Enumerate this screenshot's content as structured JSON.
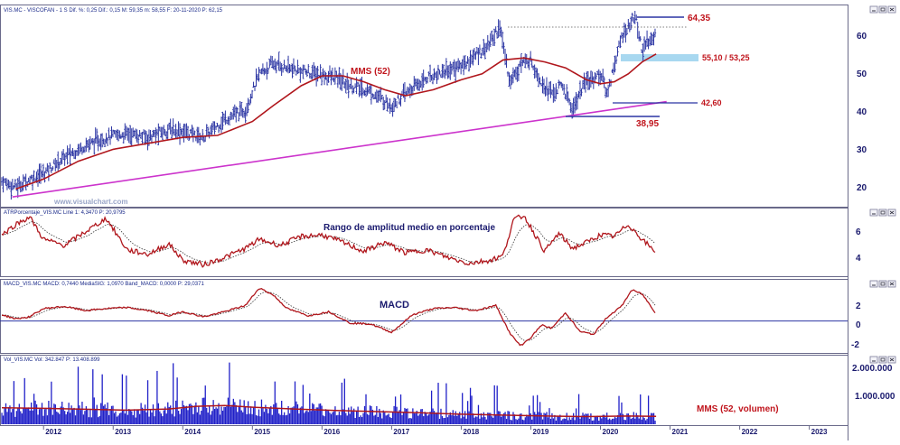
{
  "colors": {
    "price_bars": "#2b35a3",
    "ma_red": "#b0161c",
    "trendline": "#cc33cc",
    "indicator_main": "#b0161c",
    "indicator_signal": "#333333",
    "zero_line": "#2b35a3",
    "volume_bars": "#2020c8",
    "support_band": "#a8d8f0",
    "axis_text": "#1a1a6e",
    "header_text": "#1a2a8a",
    "watermark": "#9aa6c8"
  },
  "panes": {
    "price": {
      "header": "VIS.MC - VISCOFAN - 1 S  Dif. %: 0,25  Dif.: 0,15  M: 59,35  m: 58,55  F: 20-11-2020  P: 62,15",
      "ma_label": "MMS (52)",
      "watermark": "www.visualchart.com",
      "y_ticks": [
        "60",
        "50",
        "40",
        "30",
        "20"
      ],
      "annotations": {
        "high": "64,35",
        "band": "55,10 / 53,25",
        "mid": "42,60",
        "low": "38,95"
      }
    },
    "atr": {
      "header": "ATRPorcentaje_VIS.MC  Line 1: 4,3470  P: 20,9795",
      "title": "Rango de amplitud medio en porcentaje",
      "y_ticks": [
        "6",
        "4"
      ]
    },
    "macd": {
      "header": "MACD_VIS.MC  MACD: 0,7440  MediaSIG: 1,0970  Band_MACD: 0,0000  P: 29,0371",
      "title": "MACD",
      "y_ticks": [
        "2",
        "0",
        "-2"
      ]
    },
    "volume": {
      "header": "Vol_VIS.MC  Vol: 342.847  P: 13.408.899",
      "ma_label": "MMS (52, volumen)",
      "y_ticks": [
        "2.000.000",
        "1.000.000"
      ]
    }
  },
  "x_axis": {
    "years": [
      "2012",
      "2013",
      "2014",
      "2015",
      "2016",
      "2017",
      "2018",
      "2019",
      "2020",
      "2021",
      "2022",
      "2023"
    ]
  },
  "chart_data": [
    {
      "type": "line",
      "title": "VIS.MC - VISCOFAN - 1 S",
      "x_unit": "year",
      "ylim": [
        16,
        66
      ],
      "series": [
        {
          "name": "price",
          "x": [
            2011.4,
            2011.6,
            2011.8,
            2012.0,
            2012.3,
            2012.6,
            2012.9,
            2013.2,
            2013.5,
            2013.8,
            2014.0,
            2014.3,
            2014.6,
            2014.9,
            2015.1,
            2015.3,
            2015.6,
            2015.9,
            2016.2,
            2016.4,
            2016.7,
            2017.0,
            2017.2,
            2017.5,
            2017.8,
            2018.0,
            2018.2,
            2018.4,
            2018.55,
            2018.7,
            2018.85,
            2019.0,
            2019.15,
            2019.3,
            2019.45,
            2019.6,
            2019.75,
            2019.9,
            2020.0,
            2020.1,
            2020.2,
            2020.3,
            2020.4,
            2020.5,
            2020.6,
            2020.7,
            2020.8
          ],
          "values": [
            22,
            20.5,
            22.5,
            24,
            28,
            31,
            33,
            34,
            33,
            35,
            34.5,
            33,
            37.5,
            40,
            49,
            51.5,
            50,
            49,
            48,
            46,
            44.5,
            41,
            44,
            48,
            50,
            51,
            53.5,
            56.5,
            61,
            47,
            51.5,
            52.5,
            47,
            44,
            46,
            40,
            46,
            48,
            49,
            44,
            51.5,
            58,
            61,
            63.5,
            55,
            57,
            60
          ]
        },
        {
          "name": "MMS (52)",
          "x": [
            2011.6,
            2012.0,
            2012.5,
            2013.0,
            2013.5,
            2014.0,
            2014.5,
            2015.0,
            2015.3,
            2015.7,
            2016.0,
            2016.3,
            2016.6,
            2016.9,
            2017.2,
            2017.6,
            2018.0,
            2018.3,
            2018.6,
            2018.9,
            2019.2,
            2019.5,
            2019.8,
            2020.0,
            2020.2,
            2020.4,
            2020.6,
            2020.8
          ],
          "values": [
            20,
            22.5,
            27,
            30,
            31.5,
            33,
            33.5,
            37,
            41,
            46,
            48.5,
            48.5,
            47,
            45,
            43.5,
            45,
            47.5,
            49,
            52.5,
            53,
            52,
            50.5,
            47.5,
            46.5,
            47,
            49,
            52,
            54
          ]
        },
        {
          "name": "trendline",
          "x": [
            2011.55,
            2020.95
          ],
          "values": [
            18,
            42
          ]
        }
      ]
    },
    {
      "type": "line",
      "title": "Rango de amplitud medio en porcentaje",
      "x_unit": "year",
      "ylim": [
        2.8,
        7.2
      ],
      "series": [
        {
          "name": "ATR %",
          "x": [
            2011.4,
            2011.6,
            2011.8,
            2012.0,
            2012.3,
            2012.6,
            2012.9,
            2013.2,
            2013.5,
            2013.8,
            2014.0,
            2014.3,
            2014.6,
            2014.9,
            2015.1,
            2015.4,
            2015.7,
            2016.0,
            2016.3,
            2016.6,
            2016.9,
            2017.2,
            2017.5,
            2017.8,
            2018.1,
            2018.4,
            2018.6,
            2018.75,
            2018.9,
            2019.0,
            2019.2,
            2019.4,
            2019.6,
            2019.8,
            2020.0,
            2020.2,
            2020.4,
            2020.6,
            2020.8
          ],
          "values": [
            5.5,
            6.2,
            6.7,
            5.2,
            4.8,
            5.7,
            6.6,
            4.5,
            4.2,
            4.9,
            3.8,
            3.5,
            4.0,
            4.6,
            5.2,
            4.8,
            5.4,
            5.5,
            5.0,
            4.4,
            5.0,
            4.3,
            4.5,
            4.0,
            3.6,
            3.8,
            4.1,
            6.5,
            6.8,
            6.0,
            4.4,
            5.6,
            4.6,
            5.0,
            5.5,
            5.4,
            6.2,
            5.2,
            4.3
          ]
        }
      ]
    },
    {
      "type": "line",
      "title": "MACD",
      "x_unit": "year",
      "ylim": [
        -3,
        3.8
      ],
      "series": [
        {
          "name": "MACD",
          "x": [
            2011.4,
            2011.6,
            2011.8,
            2012.0,
            2012.3,
            2012.6,
            2012.9,
            2013.2,
            2013.5,
            2013.8,
            2014.0,
            2014.3,
            2014.6,
            2014.9,
            2015.1,
            2015.3,
            2015.5,
            2015.8,
            2016.1,
            2016.4,
            2016.7,
            2017.0,
            2017.3,
            2017.6,
            2017.9,
            2018.2,
            2018.5,
            2018.7,
            2018.85,
            2019.0,
            2019.15,
            2019.3,
            2019.5,
            2019.7,
            2019.9,
            2020.1,
            2020.3,
            2020.45,
            2020.6,
            2020.8
          ],
          "values": [
            0.6,
            0.2,
            0.4,
            1.2,
            1.4,
            1.0,
            1.2,
            1.3,
            1.0,
            0.5,
            0.9,
            0.4,
            0.9,
            1.5,
            3.2,
            2.5,
            1.2,
            0.5,
            0.9,
            -0.2,
            -0.3,
            -1.1,
            0.6,
            1.2,
            1.3,
            1.0,
            1.5,
            -1.2,
            -2.4,
            -1.6,
            -0.4,
            -0.7,
            0.8,
            -1.0,
            -1.3,
            0.4,
            1.4,
            3.0,
            2.6,
            0.7
          ]
        }
      ]
    },
    {
      "type": "bar",
      "title": "Vol_VIS.MC",
      "x_unit": "year",
      "ylim": [
        0,
        2150000
      ],
      "series": [
        {
          "name": "MMS (52, volumen)",
          "x": [
            2011.4,
            2012.0,
            2012.6,
            2013.2,
            2013.8,
            2014.2,
            2014.6,
            2015.0,
            2015.6,
            2016.2,
            2016.8,
            2017.4,
            2018.0,
            2018.6,
            2019.2,
            2019.8,
            2020.4,
            2020.8
          ],
          "values": [
            560000,
            540000,
            510000,
            480000,
            520000,
            610000,
            640000,
            580000,
            520000,
            470000,
            430000,
            390000,
            340000,
            310000,
            280000,
            260000,
            280000,
            270000
          ]
        }
      ]
    }
  ]
}
